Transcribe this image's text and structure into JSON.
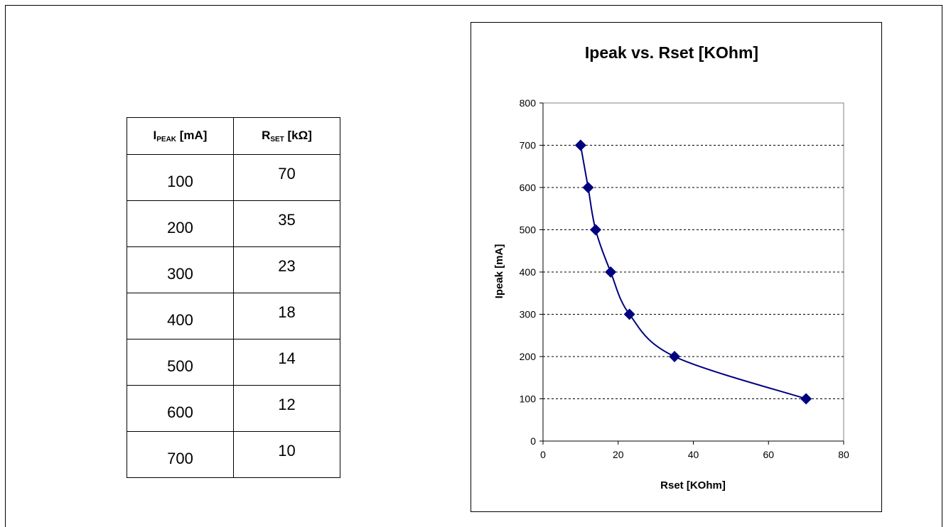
{
  "table": {
    "headers": [
      {
        "main": "I",
        "sub": "PEAK",
        "unit": " [mA]"
      },
      {
        "main": "R",
        "sub": "SET",
        "unit": " [kΩ]"
      }
    ],
    "rows": [
      [
        "100",
        "70"
      ],
      [
        "200",
        "35"
      ],
      [
        "300",
        "23"
      ],
      [
        "400",
        "18"
      ],
      [
        "500",
        "14"
      ],
      [
        "600",
        "12"
      ],
      [
        "700",
        "10"
      ]
    ]
  },
  "chart_data": {
    "type": "scatter",
    "title": "Ipeak vs. Rset [KOhm]",
    "xlabel": "Rset [KOhm]",
    "ylabel": "Ipeak [mA]",
    "xlim": [
      0,
      80
    ],
    "ylim": [
      0,
      800
    ],
    "xticks": [
      0,
      20,
      40,
      60,
      80
    ],
    "yticks": [
      0,
      100,
      200,
      300,
      400,
      500,
      600,
      700,
      800
    ],
    "grid": "horizontal dashed",
    "series": [
      {
        "color": "#000080",
        "points": [
          {
            "x": 70,
            "y": 100
          },
          {
            "x": 35,
            "y": 200
          },
          {
            "x": 23,
            "y": 300
          },
          {
            "x": 18,
            "y": 400
          },
          {
            "x": 14,
            "y": 500
          },
          {
            "x": 12,
            "y": 600
          },
          {
            "x": 10,
            "y": 700
          }
        ]
      }
    ]
  }
}
